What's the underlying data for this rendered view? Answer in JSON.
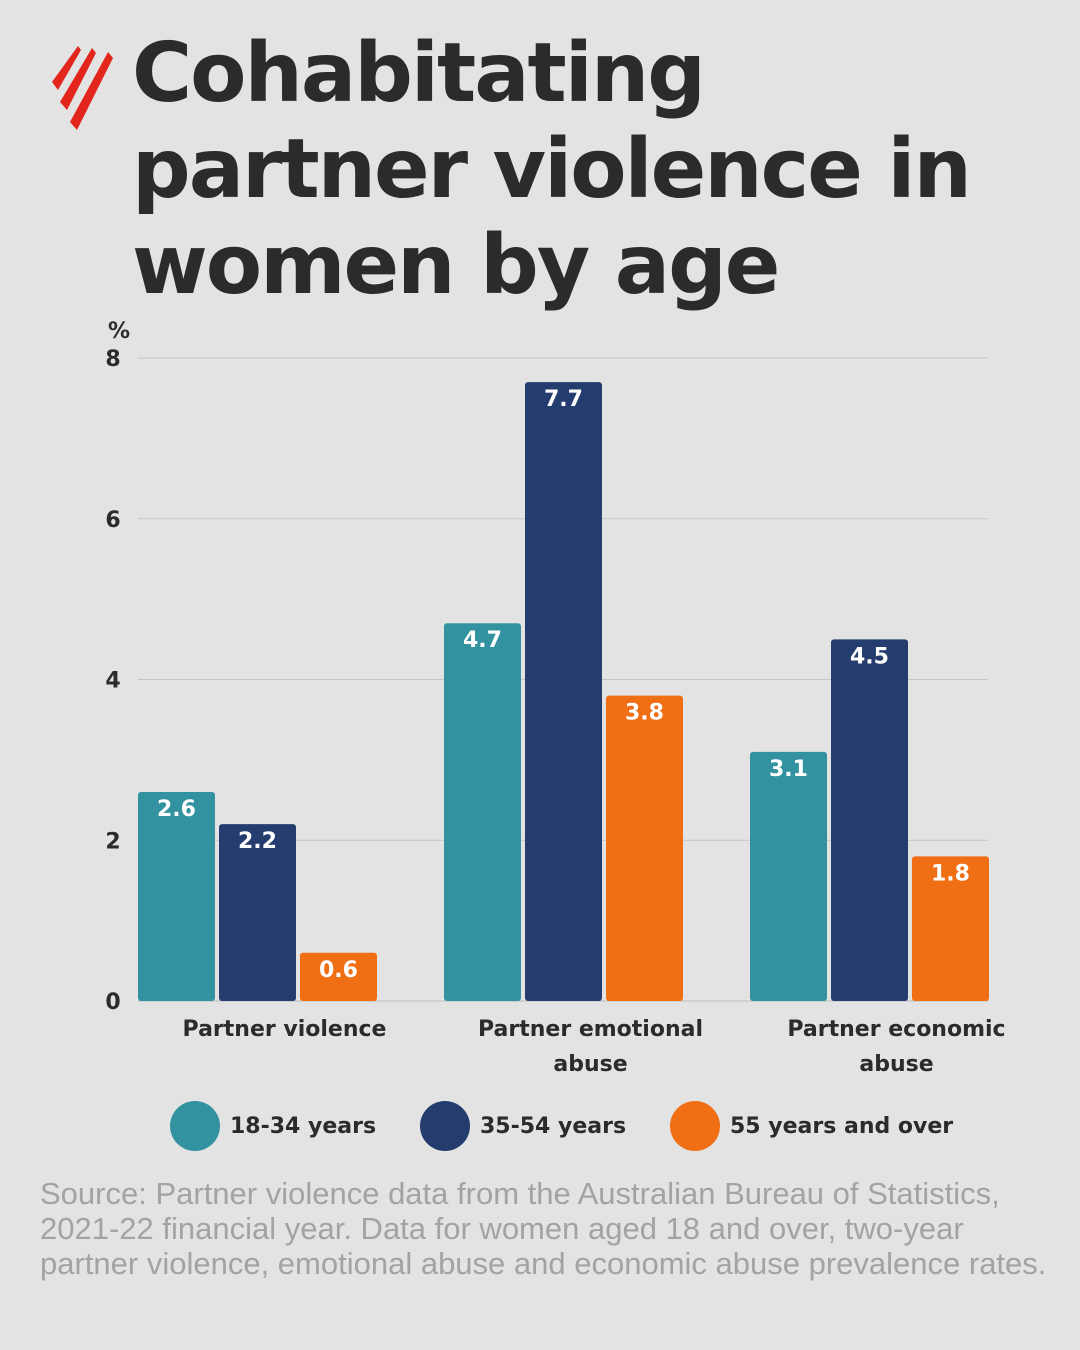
{
  "title": "Cohabitating partner violence in women by age",
  "logo": {
    "icon": "sbs-logo-icon",
    "color": "#e3261c"
  },
  "chart_data": {
    "type": "bar",
    "title": "Cohabitating partner violence in women by age",
    "ylabel": "%",
    "xlabel": "",
    "ylim": [
      0,
      8
    ],
    "yticks": [
      0,
      2,
      4,
      6,
      8
    ],
    "grid": true,
    "legend_position": "bottom",
    "categories": [
      [
        "Partner violence"
      ],
      [
        "Partner emotional",
        "abuse"
      ],
      [
        "Partner economic",
        "abuse"
      ]
    ],
    "series": [
      {
        "name": "18-34 years",
        "color": "#33929f",
        "values": [
          2.6,
          4.7,
          3.1
        ]
      },
      {
        "name": "35-54 years",
        "color": "#253d6e",
        "values": [
          2.2,
          7.7,
          4.5
        ]
      },
      {
        "name": "55 years and over",
        "color": "#f06f14",
        "values": [
          0.6,
          3.8,
          1.8
        ]
      }
    ]
  },
  "source": "Source: Partner violence data from the Australian Bureau of Statistics, 2021-22 financial year. Data for women aged 18 and over, two-year partner violence, emotional abuse and economic abuse prevalence rates."
}
